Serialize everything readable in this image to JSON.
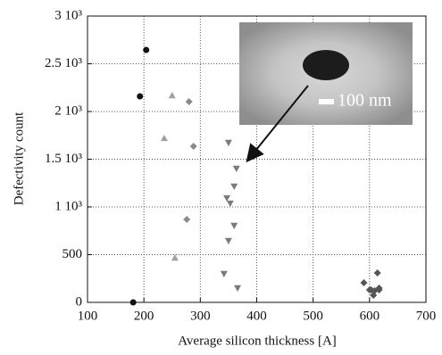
{
  "chart_data": {
    "type": "scatter",
    "x_label": "Average silicon thickness [A]",
    "y_label": "Defectivity count",
    "inset_label": "100 nm",
    "xlim": [
      100,
      700
    ],
    "xticks": [
      100,
      200,
      300,
      400,
      500,
      600,
      700
    ],
    "ylim": [
      0,
      3000
    ],
    "yticks": [
      0,
      500,
      {
        "value": 1000,
        "label": "1 10³"
      },
      {
        "value": 1500,
        "label": "1.5 10³"
      },
      {
        "value": 2000,
        "label": "2 10³"
      },
      {
        "value": 2500,
        "label": "2.5 10³"
      },
      {
        "value": 3000,
        "label": "3 10³"
      }
    ],
    "grid": true,
    "series": [
      {
        "marker": "circle",
        "color": "#111111",
        "x": [
          204,
          193,
          181
        ],
        "values": [
          2645,
          2159,
          0
        ]
      },
      {
        "marker": "triangle-up",
        "color": "#a0a0a0",
        "x": [
          250,
          236,
          255
        ],
        "values": [
          2168,
          1720,
          467
        ]
      },
      {
        "marker": "diamond",
        "color": "#8a8a8a",
        "x": [
          280,
          288,
          276
        ],
        "values": [
          2103,
          1636,
          869
        ]
      },
      {
        "marker": "triangle-down",
        "color": "#7a7a7a",
        "x": [
          350,
          364,
          360,
          347,
          353,
          360,
          350,
          342,
          366
        ],
        "values": [
          1673,
          1402,
          1215,
          1093,
          1037,
          804,
          645,
          299,
          150
        ]
      },
      {
        "marker": "diamond",
        "color": "#555555",
        "x": [
          590,
          600,
          609,
          617,
          614,
          617,
          607,
          603
        ],
        "values": [
          206,
          131,
          121,
          131,
          308,
          150,
          75,
          131
        ]
      }
    ]
  }
}
